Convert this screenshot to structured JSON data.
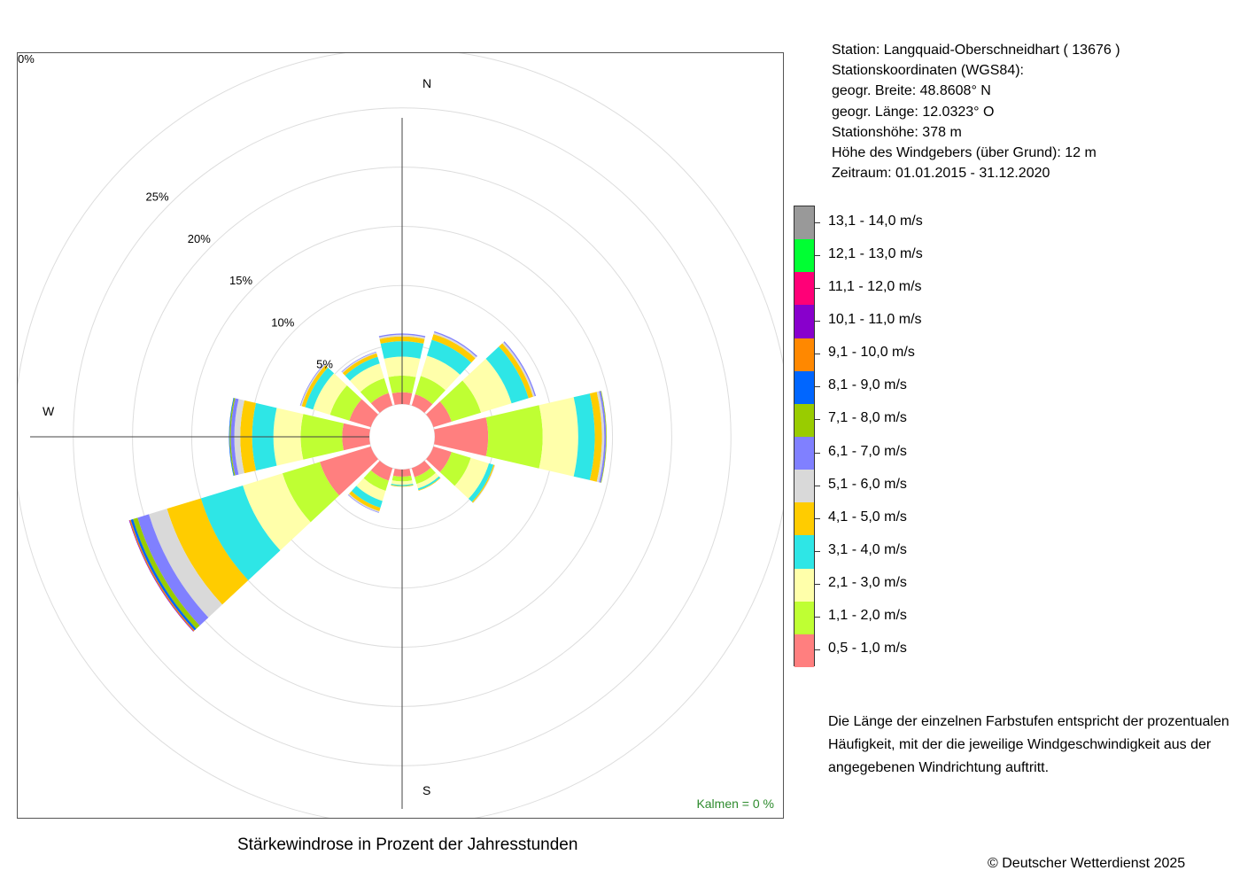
{
  "station": {
    "lines": [
      "Station:  Langquaid-Oberschneidhart  ( 13676 )",
      "Stationskoordinaten (WGS84):",
      "geogr. Breite: 48.8608° N",
      "geogr. Länge: 12.0323° O",
      "Stationshöhe: 378 m",
      "Höhe des Windgebers (über Grund): 12 m",
      "Zeitraum: 01.01.2015 - 31.12.2020"
    ]
  },
  "calms_text": "Kalmen  =  0 %",
  "note_lines": [
    "Die Länge der einzelnen Farbstufen entspricht der prozentualen",
    "Häufigkeit, mit der die jeweilige Windgeschwindigkeit aus der",
    "angegebenen Windrichtung auftritt."
  ],
  "footer_title": "Stärkewindrose in Prozent der Jahresstunden",
  "copyright": "© Deutscher Wetterdienst  2025",
  "chart_data": {
    "type": "wind-rose",
    "directions_deg": [
      0,
      30,
      60,
      90,
      120,
      150,
      180,
      210,
      240,
      270,
      300,
      330
    ],
    "compass_labels": [
      "N",
      "W",
      "S"
    ],
    "ring_labels": [
      "0%",
      "5%",
      "10%",
      "15%",
      "20%",
      "25%"
    ],
    "ring_values": [
      0,
      5,
      10,
      15,
      20,
      25
    ],
    "max_radius_percent": 27,
    "grid": true,
    "legend_position": "right",
    "speed_classes": [
      {
        "label": "0,5 - 1,0 m/s",
        "color": "#ff7f7f"
      },
      {
        "label": "1,1 - 2,0 m/s",
        "color": "#bfff33"
      },
      {
        "label": "2,1 - 3,0 m/s",
        "color": "#ffffaa"
      },
      {
        "label": "3,1 - 4,0 m/s",
        "color": "#2ee6e6"
      },
      {
        "label": "4,1 - 5,0 m/s",
        "color": "#ffcc00"
      },
      {
        "label": "5,1 - 6,0 m/s",
        "color": "#d9d9d9"
      },
      {
        "label": "6,1 - 7,0 m/s",
        "color": "#8080ff"
      },
      {
        "label": "7,1 - 8,0 m/s",
        "color": "#99cc00"
      },
      {
        "label": "8,1 - 9,0 m/s",
        "color": "#0066ff"
      },
      {
        "label": "9,1 - 10,0 m/s",
        "color": "#ff8800"
      },
      {
        "label": "10,1 - 11,0 m/s",
        "color": "#8800cc"
      },
      {
        "label": "11,1 - 12,0 m/s",
        "color": "#ff0077"
      },
      {
        "label": "12,1 - 13,0 m/s",
        "color": "#00ff33"
      },
      {
        "label": "13,1 - 14,0 m/s",
        "color": "#999999"
      }
    ],
    "series": [
      {
        "direction": 0,
        "values": [
          1.0,
          1.4,
          1.6,
          1.3,
          0.4,
          0.15,
          0.1,
          0,
          0,
          0,
          0,
          0,
          0,
          0
        ]
      },
      {
        "direction": 30,
        "values": [
          1.0,
          1.6,
          1.8,
          1.4,
          0.5,
          0.15,
          0.1,
          0,
          0,
          0,
          0,
          0,
          0,
          0
        ]
      },
      {
        "direction": 60,
        "values": [
          1.6,
          2.6,
          2.7,
          1.5,
          0.4,
          0.15,
          0.1,
          0,
          0,
          0,
          0,
          0,
          0,
          0
        ]
      },
      {
        "direction": 90,
        "values": [
          4.5,
          4.6,
          3.0,
          1.4,
          0.6,
          0.2,
          0.15,
          0.05,
          0,
          0,
          0,
          0,
          0,
          0
        ]
      },
      {
        "direction": 120,
        "values": [
          1.6,
          1.7,
          1.6,
          0.4,
          0.1,
          0.05,
          0,
          0,
          0,
          0,
          0,
          0,
          0,
          0
        ]
      },
      {
        "direction": 150,
        "values": [
          0.8,
          0.6,
          0.4,
          0.15,
          0.05,
          0,
          0,
          0,
          0,
          0,
          0,
          0,
          0,
          0
        ]
      },
      {
        "direction": 180,
        "values": [
          0.6,
          0.4,
          0.3,
          0.1,
          0.05,
          0,
          0,
          0,
          0,
          0,
          0,
          0,
          0,
          0
        ]
      },
      {
        "direction": 210,
        "values": [
          1.1,
          0.9,
          0.9,
          0.6,
          0.3,
          0.1,
          0.05,
          0,
          0,
          0,
          0,
          0,
          0,
          0
        ]
      },
      {
        "direction": 240,
        "values": [
          4.5,
          3.3,
          3.5,
          3.7,
          3.0,
          1.6,
          1.0,
          0.4,
          0.2,
          0.1,
          0.05,
          0,
          0,
          0
        ]
      },
      {
        "direction": 270,
        "values": [
          2.3,
          3.5,
          2.3,
          1.8,
          1.0,
          0.5,
          0.3,
          0.1,
          0.05,
          0,
          0,
          0,
          0,
          0
        ]
      },
      {
        "direction": 300,
        "values": [
          1.9,
          1.7,
          1.5,
          0.7,
          0.3,
          0.1,
          0.05,
          0,
          0,
          0,
          0,
          0,
          0,
          0
        ]
      },
      {
        "direction": 330,
        "values": [
          1.1,
          1.3,
          1.3,
          0.6,
          0.3,
          0.1,
          0.05,
          0,
          0,
          0,
          0,
          0,
          0,
          0
        ]
      }
    ]
  }
}
